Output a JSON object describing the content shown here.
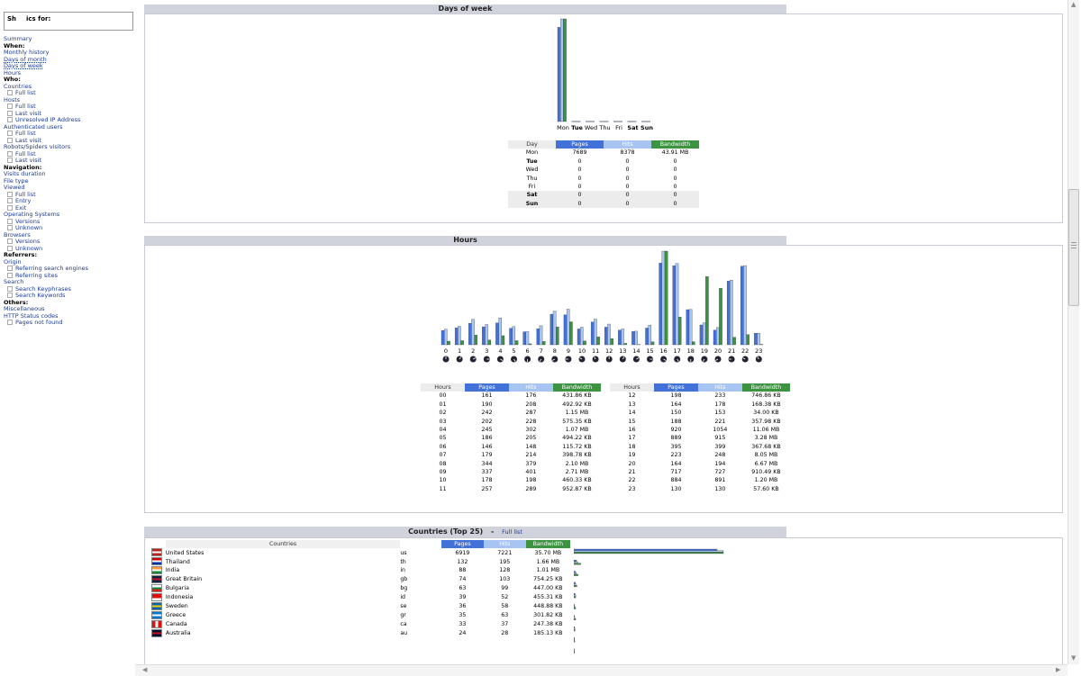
{
  "nav": {
    "stats_prefix": "Sh",
    "stats_suffix": "ics for:",
    "items": [
      {
        "label": "Summary",
        "type": "link"
      },
      {
        "label": "When:",
        "type": "head"
      },
      {
        "label": "Monthly history",
        "type": "link"
      },
      {
        "label": "Days of month",
        "type": "link",
        "u": true
      },
      {
        "label": "Days of week",
        "type": "link",
        "u": true
      },
      {
        "label": "Hours",
        "type": "link"
      },
      {
        "label": "Who:",
        "type": "head"
      },
      {
        "label": "Countries",
        "type": "link"
      },
      {
        "label": "Full list",
        "type": "sub"
      },
      {
        "label": "Hosts",
        "type": "link"
      },
      {
        "label": "Full list",
        "type": "sub"
      },
      {
        "label": "Last visit",
        "type": "sub"
      },
      {
        "label": "Unresolved IP Address",
        "type": "sub"
      },
      {
        "label": "Authenticated users",
        "type": "link"
      },
      {
        "label": "Full list",
        "type": "sub"
      },
      {
        "label": "Last visit",
        "type": "sub"
      },
      {
        "label": "Robots/Spiders visitors",
        "type": "link"
      },
      {
        "label": "Full list",
        "type": "sub"
      },
      {
        "label": "Last visit",
        "type": "sub"
      },
      {
        "label": "Navigation:",
        "type": "head"
      },
      {
        "label": "Visits duration",
        "type": "link"
      },
      {
        "label": "File type",
        "type": "link"
      },
      {
        "label": "Viewed",
        "type": "link"
      },
      {
        "label": "Full list",
        "type": "sub"
      },
      {
        "label": "Entry",
        "type": "sub"
      },
      {
        "label": "Exit",
        "type": "sub"
      },
      {
        "label": "Operating Systems",
        "type": "link"
      },
      {
        "label": "Versions",
        "type": "sub"
      },
      {
        "label": "Unknown",
        "type": "sub"
      },
      {
        "label": "Browsers",
        "type": "link"
      },
      {
        "label": "Versions",
        "type": "sub"
      },
      {
        "label": "Unknown",
        "type": "sub"
      },
      {
        "label": "Referrers:",
        "type": "head"
      },
      {
        "label": "Origin",
        "type": "link"
      },
      {
        "label": "Referring search engines",
        "type": "sub"
      },
      {
        "label": "Referring sites",
        "type": "sub"
      },
      {
        "label": "Search",
        "type": "link"
      },
      {
        "label": "Search Keyphrases",
        "type": "sub"
      },
      {
        "label": "Search Keywords",
        "type": "sub"
      },
      {
        "label": "Others:",
        "type": "head"
      },
      {
        "label": "Miscellaneous",
        "type": "link"
      },
      {
        "label": "HTTP Status codes",
        "type": "link"
      },
      {
        "label": "Pages not found",
        "type": "sub"
      }
    ]
  },
  "colors": {
    "pages": "#4272d8",
    "hits": "#a7c4f2",
    "bandwidth": "#3c9340"
  },
  "days": {
    "title": "Days of week",
    "headers": [
      "Day",
      "Pages",
      "Hits",
      "Bandwidth"
    ],
    "rows": [
      {
        "day": "Mon",
        "pages": "7689",
        "hits": "8378",
        "bw": "43.91 MB",
        "bold": false
      },
      {
        "day": "Tue",
        "pages": "0",
        "hits": "0",
        "bw": "0",
        "bold": true
      },
      {
        "day": "Wed",
        "pages": "0",
        "hits": "0",
        "bw": "0",
        "bold": false
      },
      {
        "day": "Thu",
        "pages": "0",
        "hits": "0",
        "bw": "0",
        "bold": false
      },
      {
        "day": "Fri",
        "pages": "0",
        "hits": "0",
        "bw": "0",
        "bold": false
      },
      {
        "day": "Sat",
        "pages": "0",
        "hits": "0",
        "bw": "0",
        "bold": true
      },
      {
        "day": "Sun",
        "pages": "0",
        "hits": "0",
        "bw": "0",
        "bold": true
      }
    ],
    "bars": [
      {
        "pages": 7689,
        "hits": 8378,
        "bw_mb": 43.91
      },
      {
        "pages": 0,
        "hits": 0,
        "bw_mb": 0
      },
      {
        "pages": 0,
        "hits": 0,
        "bw_mb": 0
      },
      {
        "pages": 0,
        "hits": 0,
        "bw_mb": 0
      },
      {
        "pages": 0,
        "hits": 0,
        "bw_mb": 0
      },
      {
        "pages": 0,
        "hits": 0,
        "bw_mb": 0
      },
      {
        "pages": 0,
        "hits": 0,
        "bw_mb": 0
      }
    ]
  },
  "hours": {
    "title": "Hours",
    "headers": [
      "Hours",
      "Pages",
      "Hits",
      "Bandwidth"
    ],
    "rows": [
      {
        "h": "00",
        "pages": "161",
        "hits": "176",
        "bw": "431.86 KB",
        "bw_kb": 431.86
      },
      {
        "h": "01",
        "pages": "190",
        "hits": "208",
        "bw": "492.92 KB",
        "bw_kb": 492.92
      },
      {
        "h": "02",
        "pages": "242",
        "hits": "287",
        "bw": "1.15 MB",
        "bw_kb": 1177.6
      },
      {
        "h": "03",
        "pages": "202",
        "hits": "228",
        "bw": "575.35 KB",
        "bw_kb": 575.35
      },
      {
        "h": "04",
        "pages": "245",
        "hits": "302",
        "bw": "1.07 MB",
        "bw_kb": 1095.7
      },
      {
        "h": "05",
        "pages": "186",
        "hits": "205",
        "bw": "494.22 KB",
        "bw_kb": 494.22
      },
      {
        "h": "06",
        "pages": "146",
        "hits": "148",
        "bw": "115.72 KB",
        "bw_kb": 115.72
      },
      {
        "h": "07",
        "pages": "179",
        "hits": "214",
        "bw": "398.78 KB",
        "bw_kb": 398.78
      },
      {
        "h": "08",
        "pages": "344",
        "hits": "379",
        "bw": "2.10 MB",
        "bw_kb": 2150.4
      },
      {
        "h": "09",
        "pages": "337",
        "hits": "401",
        "bw": "2.71 MB",
        "bw_kb": 2775.0
      },
      {
        "h": "10",
        "pages": "178",
        "hits": "198",
        "bw": "460.33 KB",
        "bw_kb": 460.33
      },
      {
        "h": "11",
        "pages": "257",
        "hits": "289",
        "bw": "952.87 KB",
        "bw_kb": 952.87
      },
      {
        "h": "12",
        "pages": "198",
        "hits": "233",
        "bw": "746.86 KB",
        "bw_kb": 746.86
      },
      {
        "h": "13",
        "pages": "164",
        "hits": "178",
        "bw": "168.38 KB",
        "bw_kb": 168.38
      },
      {
        "h": "14",
        "pages": "150",
        "hits": "153",
        "bw": "34.00 KB",
        "bw_kb": 34.0
      },
      {
        "h": "15",
        "pages": "188",
        "hits": "221",
        "bw": "357.98 KB",
        "bw_kb": 357.98
      },
      {
        "h": "16",
        "pages": "920",
        "hits": "1054",
        "bw": "11.06 MB",
        "bw_kb": 11325.4
      },
      {
        "h": "17",
        "pages": "889",
        "hits": "915",
        "bw": "3.28 MB",
        "bw_kb": 3358.7
      },
      {
        "h": "18",
        "pages": "395",
        "hits": "399",
        "bw": "367.68 KB",
        "bw_kb": 367.68
      },
      {
        "h": "19",
        "pages": "223",
        "hits": "248",
        "bw": "8.05 MB",
        "bw_kb": 8243.2
      },
      {
        "h": "20",
        "pages": "164",
        "hits": "194",
        "bw": "6.67 MB",
        "bw_kb": 6830.1
      },
      {
        "h": "21",
        "pages": "717",
        "hits": "727",
        "bw": "910.49 KB",
        "bw_kb": 910.49
      },
      {
        "h": "22",
        "pages": "884",
        "hits": "891",
        "bw": "1.20 MB",
        "bw_kb": 1228.8
      },
      {
        "h": "23",
        "pages": "130",
        "hits": "130",
        "bw": "57.60 KB",
        "bw_kb": 57.6
      }
    ]
  },
  "countries": {
    "title": "Countries (Top 25)",
    "sep": "-",
    "full_list": "Full list",
    "headers": [
      "Countries",
      "Pages",
      "Hits",
      "Bandwidth"
    ],
    "rows": [
      {
        "name": "United States",
        "code": "us",
        "pages": "6919",
        "hits": "7221",
        "bw": "35.70 MB",
        "flag": "us"
      },
      {
        "name": "Thailand",
        "code": "th",
        "pages": "132",
        "hits": "195",
        "bw": "1.66 MB",
        "flag": "th"
      },
      {
        "name": "India",
        "code": "in",
        "pages": "88",
        "hits": "128",
        "bw": "1.01 MB",
        "flag": "in"
      },
      {
        "name": "Great Britain",
        "code": "gb",
        "pages": "74",
        "hits": "103",
        "bw": "754.25 KB",
        "flag": "gb"
      },
      {
        "name": "Bulgaria",
        "code": "bg",
        "pages": "63",
        "hits": "99",
        "bw": "447.00 KB",
        "flag": "bg"
      },
      {
        "name": "Indonesia",
        "code": "id",
        "pages": "39",
        "hits": "52",
        "bw": "455.31 KB",
        "flag": "id"
      },
      {
        "name": "Sweden",
        "code": "se",
        "pages": "36",
        "hits": "58",
        "bw": "448.88 KB",
        "flag": "se"
      },
      {
        "name": "Greece",
        "code": "gr",
        "pages": "35",
        "hits": "63",
        "bw": "301.82 KB",
        "flag": "gr"
      },
      {
        "name": "Canada",
        "code": "ca",
        "pages": "33",
        "hits": "37",
        "bw": "247.38 KB",
        "flag": "ca"
      },
      {
        "name": "Australia",
        "code": "au",
        "pages": "24",
        "hits": "28",
        "bw": "185.13 KB",
        "flag": "au"
      }
    ]
  }
}
